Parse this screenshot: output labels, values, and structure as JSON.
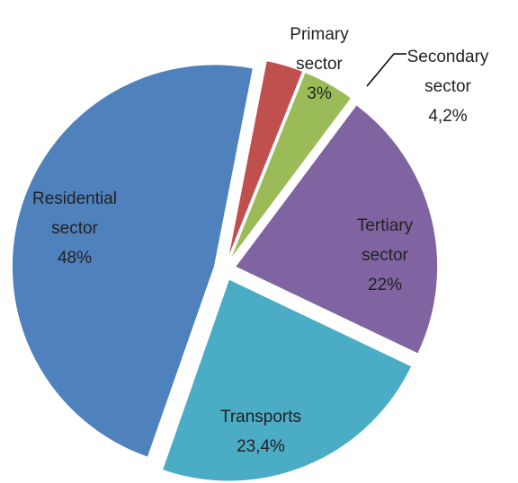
{
  "chart_data": {
    "type": "pie",
    "categories": [
      "Primary sector",
      "Secondary sector",
      "Tertiary sector",
      "Transports",
      "Residential sector"
    ],
    "values": [
      3,
      4.2,
      22,
      23.4,
      48
    ],
    "value_labels": [
      "3%",
      "4,2%",
      "22%",
      "23,4%",
      "48%"
    ],
    "colors": [
      "#c0504d",
      "#9bbb59",
      "#8064a2",
      "#4bacc6",
      "#4f81bd"
    ]
  }
}
